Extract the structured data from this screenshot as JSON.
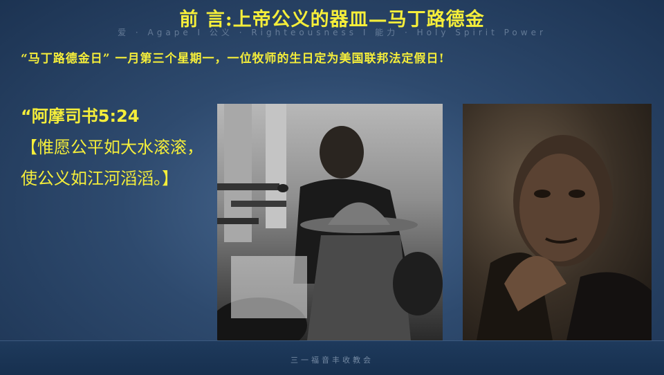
{
  "slide": {
    "title": "前  言:上帝公义的器皿—马丁路德金",
    "banner": "爱 · Agape  I  公义 · Righteousness  I  能力 · Holy Spirit Power",
    "subtitle": "“马丁路德金日”  一月第三个星期一，一位牧师的生日定为美国联邦法定假日!",
    "verse": {
      "reference": "“阿摩司书5:24",
      "line1": "【惟愿公平如大水滚滚，",
      "line2": "使公义如江河滔滔。】"
    },
    "footer": "三一福音丰收教会"
  }
}
